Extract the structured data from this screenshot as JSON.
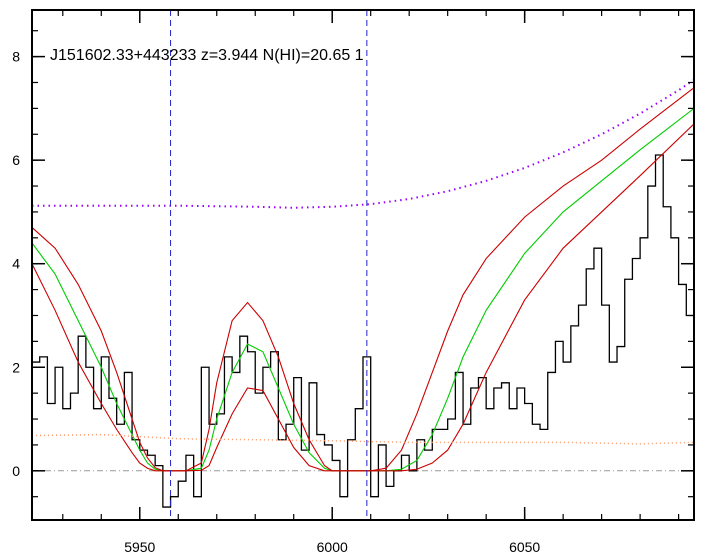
{
  "chart_data": {
    "type": "line",
    "title": "J151602.33+443233 z=3.944 N(HI)=20.65 1",
    "xlabel": "",
    "ylabel": "",
    "xlim": [
      5922,
      6094
    ],
    "ylim": [
      -0.95,
      8.9
    ],
    "xticks": [
      5950,
      6000,
      6050
    ],
    "yticks": [
      0,
      2,
      4,
      6,
      8
    ],
    "x_minor_step": 10,
    "y_minor_step": 0.5,
    "grid": false,
    "legend": "none",
    "vlines": [
      5958,
      6009
    ],
    "hline": 0,
    "colors": {
      "flux": "#000000",
      "model": "#00cc00",
      "model_bounds": "#cc0000",
      "continuum": "#9900ff",
      "error": "#ff9966",
      "vline": "#2222cc",
      "zero": "#999999"
    },
    "series": [
      {
        "style": "step",
        "x": [
          5922,
          5924,
          5926,
          5928,
          5930,
          5932,
          5934,
          5936,
          5938,
          5940,
          5942,
          5944,
          5946,
          5948,
          5950,
          5952,
          5954,
          5956,
          5958,
          5960,
          5962,
          5964,
          5966,
          5968,
          5970,
          5972,
          5974,
          5976,
          5978,
          5980,
          5982,
          5984,
          5986,
          5988,
          5990,
          5992,
          5994,
          5996,
          5998,
          6000,
          6002,
          6004,
          6006,
          6008,
          6010,
          6012,
          6014,
          6016,
          6018,
          6020,
          6022,
          6024,
          6026,
          6028,
          6030,
          6032,
          6034,
          6036,
          6038,
          6040,
          6042,
          6044,
          6046,
          6048,
          6050,
          6052,
          6054,
          6056,
          6058,
          6060,
          6062,
          6064,
          6066,
          6068,
          6070,
          6072,
          6074,
          6076,
          6078,
          6080,
          6082,
          6084,
          6086,
          6088,
          6090,
          6092
        ],
        "values": [
          2.1,
          2.2,
          1.3,
          2.0,
          1.2,
          1.5,
          2.6,
          2.0,
          1.2,
          2.2,
          1.4,
          0.9,
          1.9,
          0.6,
          0.4,
          0.3,
          0.1,
          -0.7,
          -0.5,
          -0.2,
          0.3,
          -0.5,
          2.0,
          0.9,
          1.1,
          2.2,
          1.9,
          2.6,
          2.3,
          1.5,
          2.0,
          2.3,
          0.6,
          0.9,
          1.8,
          0.4,
          1.7,
          0.7,
          0.5,
          0.2,
          -0.5,
          0.6,
          1.2,
          2.2,
          -0.5,
          0.5,
          -0.3,
          0.0,
          0.3,
          0.0,
          0.6,
          0.4,
          0.8,
          0.8,
          1.0,
          1.9,
          0.9,
          1.6,
          1.8,
          1.2,
          1.6,
          1.7,
          1.2,
          1.6,
          1.3,
          0.9,
          0.8,
          1.9,
          2.5,
          2.1,
          2.8,
          3.2,
          3.9,
          4.3,
          3.2,
          2.1,
          2.4,
          3.7,
          4.1,
          4.5,
          5.5,
          6.1,
          5.1,
          4.5,
          3.6,
          3.0
        ]
      },
      {
        "style": "line",
        "x": [
          5922,
          5928,
          5934,
          5940,
          5944,
          5948,
          5950,
          5952,
          5954,
          5956,
          5958,
          5962,
          5966,
          5968,
          5970,
          5974,
          5978,
          5982,
          5986,
          5990,
          5994,
          5998,
          6000,
          6002,
          6006,
          6010,
          6014,
          6018,
          6022,
          6026,
          6030,
          6034,
          6040,
          6050,
          6060,
          6070,
          6080,
          6094
        ],
        "values": [
          4.4,
          3.8,
          2.9,
          2.0,
          1.3,
          0.7,
          0.4,
          0.15,
          0.03,
          0.0,
          0.0,
          0.0,
          0.05,
          0.4,
          1.0,
          1.9,
          2.45,
          2.3,
          1.6,
          0.9,
          0.35,
          0.05,
          0.0,
          0.0,
          0.0,
          0.0,
          0.0,
          0.03,
          0.2,
          0.7,
          1.4,
          2.2,
          3.1,
          4.2,
          5.0,
          5.6,
          6.2,
          7.0
        ]
      },
      {
        "style": "line",
        "x": [
          5922,
          5928,
          5934,
          5940,
          5944,
          5948,
          5950,
          5952,
          5954,
          5956,
          5958,
          5962,
          5966,
          5968,
          5970,
          5974,
          5978,
          5982,
          5986,
          5990,
          5994,
          5998,
          6000,
          6002,
          6006,
          6010,
          6014,
          6018,
          6022,
          6026,
          6030,
          6034,
          6040,
          6050,
          6060,
          6070,
          6080,
          6094
        ],
        "values": [
          4.7,
          4.3,
          3.6,
          2.7,
          1.9,
          1.0,
          0.55,
          0.25,
          0.06,
          0.0,
          0.0,
          0.0,
          0.15,
          0.8,
          1.7,
          2.9,
          3.25,
          2.9,
          2.2,
          1.3,
          0.6,
          0.1,
          0.0,
          0.0,
          0.0,
          0.0,
          0.05,
          0.4,
          1.1,
          1.9,
          2.7,
          3.4,
          4.1,
          4.9,
          5.5,
          6.0,
          6.6,
          7.4
        ]
      },
      {
        "style": "line",
        "x": [
          5922,
          5928,
          5934,
          5940,
          5944,
          5948,
          5950,
          5952,
          5954,
          5956,
          5958,
          5962,
          5966,
          5968,
          5970,
          5974,
          5978,
          5982,
          5986,
          5990,
          5994,
          5998,
          6000,
          6002,
          6006,
          6010,
          6014,
          6018,
          6022,
          6026,
          6030,
          6034,
          6040,
          6050,
          6060,
          6070,
          6080,
          6094
        ],
        "values": [
          4.0,
          3.1,
          2.1,
          1.3,
          0.8,
          0.35,
          0.15,
          0.05,
          0.0,
          0.0,
          0.0,
          0.0,
          0.01,
          0.1,
          0.45,
          1.1,
          1.6,
          1.55,
          1.0,
          0.45,
          0.1,
          0.0,
          0.0,
          0.0,
          0.0,
          0.0,
          0.0,
          0.0,
          0.03,
          0.15,
          0.4,
          0.9,
          1.9,
          3.3,
          4.3,
          5.0,
          5.7,
          6.7
        ]
      },
      {
        "style": "dotted",
        "x": [
          5922,
          5940,
          5960,
          5980,
          5990,
          6000,
          6010,
          6020,
          6030,
          6040,
          6050,
          6060,
          6070,
          6080,
          6090,
          6094
        ],
        "values": [
          5.12,
          5.12,
          5.12,
          5.1,
          5.08,
          5.1,
          5.15,
          5.25,
          5.4,
          5.6,
          5.85,
          6.15,
          6.5,
          6.9,
          7.35,
          7.55
        ]
      },
      {
        "style": "dotted",
        "x": [
          5922,
          5940,
          5960,
          5980,
          6000,
          6020,
          6040,
          6060,
          6080,
          6094
        ],
        "values": [
          0.68,
          0.7,
          0.62,
          0.6,
          0.58,
          0.55,
          0.55,
          0.55,
          0.52,
          0.55
        ]
      }
    ]
  }
}
